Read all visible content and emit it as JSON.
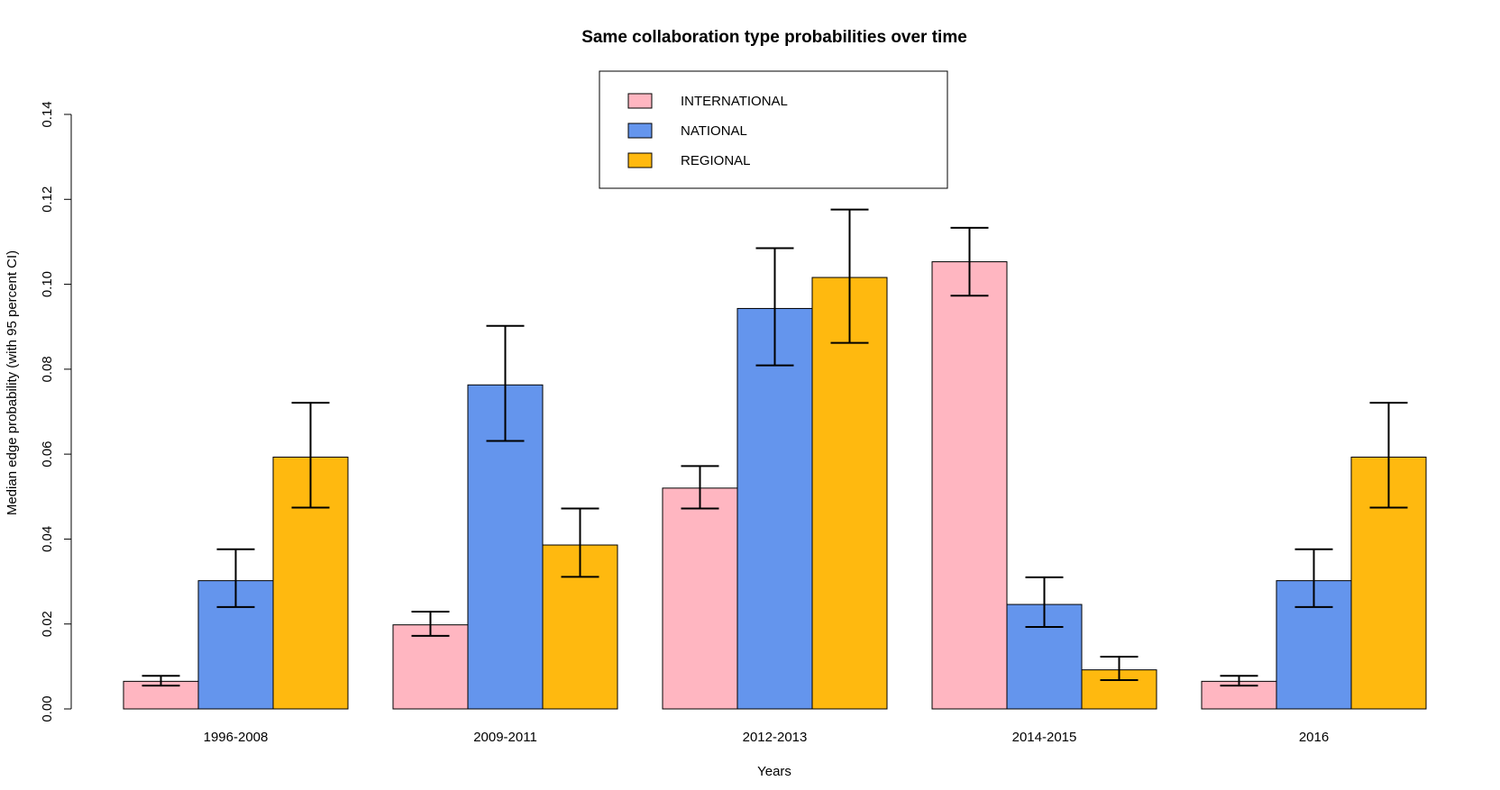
{
  "chart_data": {
    "type": "bar",
    "title": "Same collaboration type probabilities over time",
    "xlabel": "Years",
    "ylabel": "Median edge probability (with 95 percent CI)",
    "ylim": [
      0,
      0.14
    ],
    "yticks": [
      "0.00",
      "0.02",
      "0.04",
      "0.06",
      "0.08",
      "0.10",
      "0.12",
      "0.14"
    ],
    "categories": [
      "1996-2008",
      "2009-2011",
      "2012-2013",
      "2014-2015",
      "2016"
    ],
    "legend_position": "top-center",
    "grid": false,
    "series": [
      {
        "name": "INTERNATIONAL",
        "color": "#FFB6C1",
        "values": [
          0.0065,
          0.0198,
          0.052,
          0.1053,
          0.0065
        ],
        "ci_low": [
          0.0055,
          0.0172,
          0.0472,
          0.0973,
          0.0055
        ],
        "ci_high": [
          0.0078,
          0.0229,
          0.0572,
          0.1133,
          0.0078
        ]
      },
      {
        "name": "NATIONAL",
        "color": "#6495ED",
        "values": [
          0.0302,
          0.0763,
          0.0943,
          0.0246,
          0.0302
        ],
        "ci_low": [
          0.024,
          0.0631,
          0.0809,
          0.0193,
          0.024
        ],
        "ci_high": [
          0.0376,
          0.0902,
          0.1085,
          0.031,
          0.0376
        ]
      },
      {
        "name": "REGIONAL",
        "color": "#FFB90F",
        "values": [
          0.0593,
          0.0386,
          0.1016,
          0.0092,
          0.0593
        ],
        "ci_low": [
          0.0474,
          0.0311,
          0.0862,
          0.0068,
          0.0474
        ],
        "ci_high": [
          0.0721,
          0.0472,
          0.1176,
          0.0123,
          0.0721
        ]
      }
    ]
  }
}
